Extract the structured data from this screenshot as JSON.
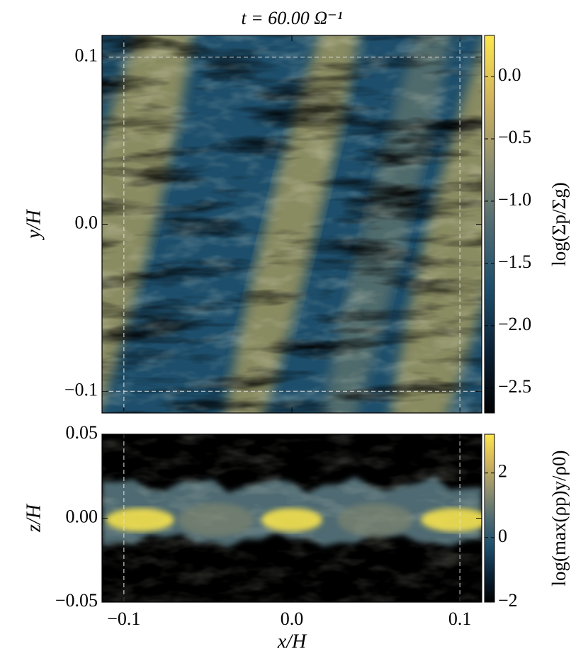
{
  "chart_data": [
    {
      "type": "heatmap",
      "title": "t = 60.00 Ω⁻¹",
      "ylabel": "y/H",
      "colorbar_label": "log(Σp/Σg)",
      "xlim": [
        -0.113,
        0.113
      ],
      "ylim": [
        -0.113,
        0.113
      ],
      "xticks": [
        -0.1,
        0,
        0.1
      ],
      "xticklabels": false,
      "yticks": [
        {
          "value": -0.1,
          "label": "−0.1"
        },
        {
          "value": 0,
          "label": "0.0"
        },
        0.1
      ],
      "guides": {
        "x": [
          -0.1,
          0.1
        ],
        "y": [
          -0.1,
          0.1
        ]
      },
      "clim": [
        -2.7,
        0.33
      ],
      "cticks": [
        {
          "value": -2.5,
          "label": "−2.5"
        },
        {
          "value": -2,
          "label": "−2.0"
        },
        {
          "value": -1.5,
          "label": "−1.5"
        },
        {
          "value": -1,
          "label": "−1.0"
        },
        {
          "value": -0.5,
          "label": "−0.5"
        },
        {
          "value": 0,
          "label": "0.0"
        }
      ],
      "colormap": [
        "#000000",
        "#0a2238",
        "#1d4e6b",
        "#4f6b72",
        "#8f8f6e",
        "#d2b45c",
        "#fde74c"
      ]
    },
    {
      "type": "heatmap",
      "xlabel": "x/H",
      "ylabel": "z/H",
      "colorbar_label": "log(max(ρp)y/ρ0)",
      "xlim": [
        -0.113,
        0.113
      ],
      "ylim": [
        -0.05,
        0.05
      ],
      "xticks": [
        {
          "value": -0.1,
          "label": "−0.1"
        },
        {
          "value": 0,
          "label": "0.0"
        },
        0.1
      ],
      "xticklabels": true,
      "yticks": [
        {
          "value": -0.05,
          "label": "−0.05"
        },
        {
          "value": 0,
          "label": "0.00"
        },
        0.05
      ],
      "guides": {
        "x": [
          -0.1,
          0.1
        ]
      },
      "clim": [
        -2,
        3.2
      ],
      "cticks": [
        {
          "value": -2,
          "label": "−2"
        },
        0,
        2
      ],
      "colormap": [
        "#000000",
        "#0a2238",
        "#1d4e6b",
        "#4f6b72",
        "#8f8f6e",
        "#d2b45c",
        "#fde74c"
      ]
    }
  ]
}
